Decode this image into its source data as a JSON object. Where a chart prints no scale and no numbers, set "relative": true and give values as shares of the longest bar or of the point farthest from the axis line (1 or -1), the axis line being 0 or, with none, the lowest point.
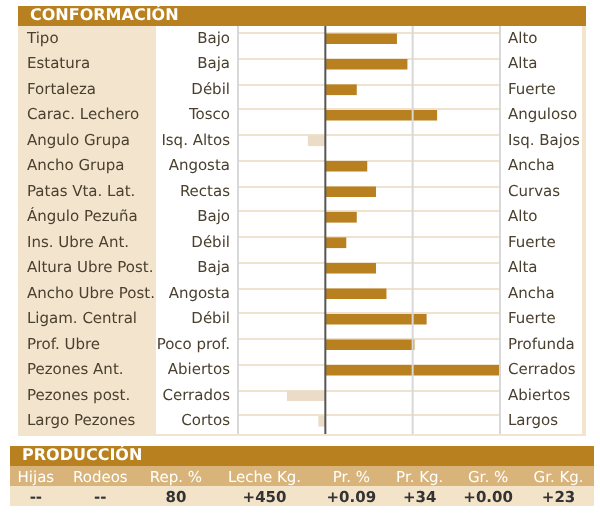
{
  "chart_data": [
    {
      "type": "bar",
      "orientation": "horizontal",
      "relative": true,
      "title": "CONFORMACIÓN",
      "grid": true,
      "ref_lines": [
        {
          "axis": "x",
          "value": 0.5,
          "color": "#d8d8d8"
        }
      ],
      "categories": [
        "Tipo",
        "Estatura",
        "Fortaleza",
        "Carac. Lechero",
        "Angulo Grupa",
        "Ancho Grupa",
        "Patas Vta. Lat.",
        "Ángulo Pezuña",
        "Ins. Ubre Ant.",
        "Altura Ubre Post.",
        "Ancho Ubre Post.",
        "Ligam. Central",
        "Prof. Ubre",
        "Pezones Ant.",
        "Pezones post.",
        "Largo Pezones"
      ],
      "values": [
        0.41,
        0.47,
        0.18,
        0.64,
        -0.1,
        0.24,
        0.29,
        0.18,
        0.12,
        0.29,
        0.35,
        0.58,
        0.51,
        1,
        -0.22,
        -0.04
      ],
      "colors": [
        "#b8801f",
        "#b8801f",
        "#b8801f",
        "#b8801f",
        "#eadcc6",
        "#b8801f",
        "#b8801f",
        "#b8801f",
        "#b8801f",
        "#b8801f",
        "#b8801f",
        "#b8801f",
        "#b8801f",
        "#b8801f",
        "#eadcc6",
        "#eadcc6"
      ],
      "annotations": [
        "Bajo",
        "Alto",
        "Baja",
        "Alta",
        "Débil",
        "Fuerte",
        "Tosco",
        "Anguloso",
        "Isq. Altos",
        "Isq. Bajos",
        "Angosta",
        "Ancha",
        "Rectas",
        "Curvas",
        "Bajo",
        "Alto",
        "Débil",
        "Fuerte",
        "Baja",
        "Alta",
        "Angosta",
        "Ancha",
        "Débil",
        "Fuerte",
        "Poco prof.",
        "Profunda",
        "Abiertos",
        "Cerrados",
        "Cerrados",
        "Abiertos",
        "Cortos",
        "Largos"
      ]
    },
    {
      "type": "other",
      "title": "PRODUCCIÓN",
      "annotations": [
        "Hijas",
        "Rodeos",
        "Rep. %",
        "Leche Kg.",
        "Pr. %",
        "Pr. Kg.",
        "Gr. %",
        "Gr. Kg.",
        "--",
        "--",
        "80",
        "+450",
        "+0.09",
        "+34",
        "+0.00",
        "+23"
      ]
    }
  ]
}
